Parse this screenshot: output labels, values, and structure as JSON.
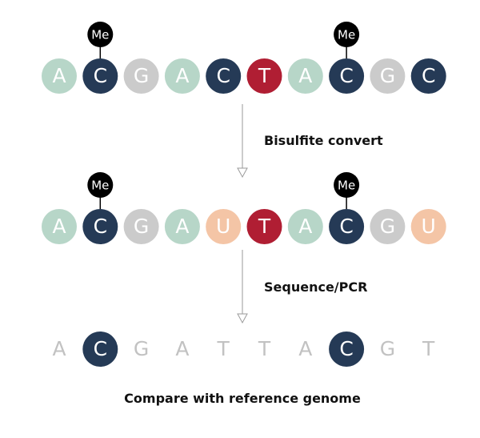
{
  "colors": {
    "A": "#b7d6c8",
    "C": "#253a56",
    "G": "#cbcbcb",
    "T": "#b01e33",
    "U": "#f4c5a6",
    "methyl": "#000000",
    "plain_letter": "#c2c2c2",
    "arrow": "#9a9a9a"
  },
  "rows": {
    "original": {
      "bases": [
        "A",
        "C",
        "G",
        "A",
        "C",
        "T",
        "A",
        "C",
        "G",
        "C"
      ],
      "methylated": [
        1,
        7
      ],
      "methyl_label": "Me"
    },
    "converted": {
      "bases": [
        "A",
        "C",
        "G",
        "A",
        "U",
        "T",
        "A",
        "C",
        "G",
        "U"
      ],
      "methylated": [
        1,
        7
      ],
      "methyl_label": "Me"
    },
    "result": {
      "bases": [
        "A",
        "C",
        "G",
        "A",
        "T",
        "T",
        "A",
        "C",
        "G",
        "T"
      ],
      "highlighted": [
        1,
        7
      ]
    }
  },
  "steps": {
    "bisulfite": "Bisulfite convert",
    "sequence": "Sequence/PCR",
    "compare": "Compare with reference genome"
  }
}
